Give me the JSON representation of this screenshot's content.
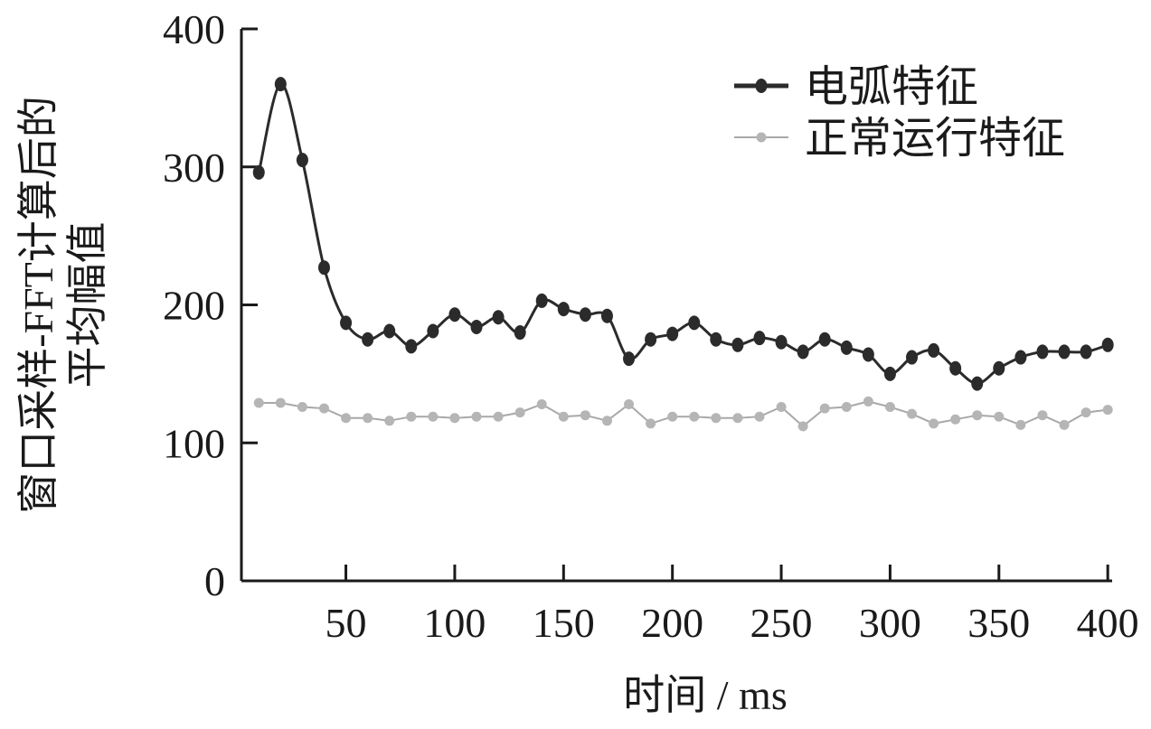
{
  "chart_data": {
    "type": "line",
    "title": "",
    "xlabel": "时间 / ms",
    "ylabel_lines": [
      "窗口采样-FFT计算后的",
      "平均幅值"
    ],
    "xlim": [
      2,
      402
    ],
    "ylim": [
      0,
      400
    ],
    "x_ticks": [
      50,
      100,
      150,
      200,
      250,
      300,
      350,
      400
    ],
    "y_ticks": [
      0,
      100,
      200,
      300,
      400
    ],
    "grid": false,
    "legend_position": "top-right",
    "series": [
      {
        "name": "电弧特征",
        "color": "#2b2b2b",
        "marker_color": "#2b2b2b",
        "smooth": true,
        "x": [
          10,
          20,
          30,
          40,
          50,
          60,
          70,
          80,
          90,
          100,
          110,
          120,
          130,
          140,
          150,
          160,
          170,
          180,
          190,
          200,
          210,
          220,
          230,
          240,
          250,
          260,
          270,
          280,
          290,
          300,
          310,
          320,
          330,
          340,
          350,
          360,
          370,
          380,
          390,
          400
        ],
        "y": [
          296,
          360,
          305,
          227,
          187,
          175,
          181,
          170,
          181,
          193,
          184,
          191,
          180,
          203,
          197,
          193,
          192,
          161,
          175,
          179,
          187,
          175,
          171,
          176,
          173,
          166,
          175,
          169,
          164,
          150,
          162,
          167,
          154,
          143,
          154,
          162,
          166,
          166,
          166,
          171
        ]
      },
      {
        "name": "正常运行特征",
        "color": "#a8a8a8",
        "marker_color": "#b5b5b5",
        "smooth": false,
        "x": [
          10,
          20,
          30,
          40,
          50,
          60,
          70,
          80,
          90,
          100,
          110,
          120,
          130,
          140,
          150,
          160,
          170,
          180,
          190,
          200,
          210,
          220,
          230,
          240,
          250,
          260,
          270,
          280,
          290,
          300,
          310,
          320,
          330,
          340,
          350,
          360,
          370,
          380,
          390,
          400
        ],
        "y": [
          129,
          129,
          126,
          125,
          118,
          118,
          116,
          119,
          119,
          118,
          119,
          119,
          122,
          128,
          119,
          120,
          116,
          128,
          114,
          119,
          119,
          118,
          118,
          119,
          126,
          112,
          125,
          126,
          130,
          126,
          121,
          114,
          117,
          120,
          119,
          113,
          120,
          113,
          122,
          124
        ]
      }
    ]
  }
}
